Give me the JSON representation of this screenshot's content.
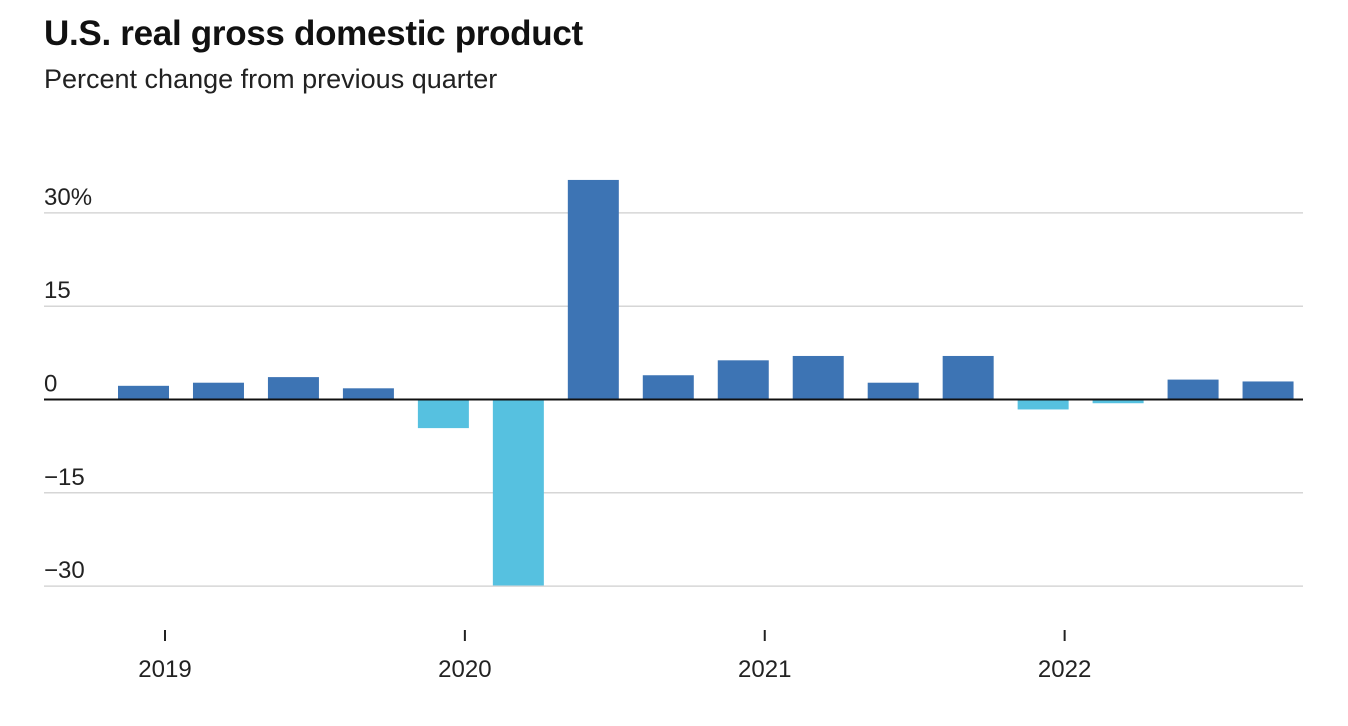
{
  "chart_data": {
    "type": "bar",
    "title": "U.S. real gross domestic product",
    "subtitle": "Percent change from previous quarter",
    "xlabel": "",
    "ylabel": "",
    "categories": [
      "2019 Q1",
      "2019 Q2",
      "2019 Q3",
      "2019 Q4",
      "2020 Q1",
      "2020 Q2",
      "2020 Q3",
      "2020 Q4",
      "2021 Q1",
      "2021 Q2",
      "2021 Q3",
      "2021 Q4",
      "2022 Q1",
      "2022 Q2",
      "2022 Q3",
      "2022 Q4"
    ],
    "values": [
      2.2,
      2.7,
      3.6,
      1.8,
      -4.6,
      -29.9,
      35.3,
      3.9,
      6.3,
      7.0,
      2.7,
      7.0,
      -1.6,
      -0.6,
      3.2,
      2.9
    ],
    "ylim": [
      -30,
      35.3
    ],
    "y_ticks": [
      {
        "value": 30,
        "label": "30%"
      },
      {
        "value": 15,
        "label": "15"
      },
      {
        "value": 0,
        "label": "0"
      },
      {
        "value": -15,
        "label": "−15"
      },
      {
        "value": -30,
        "label": "−30"
      }
    ],
    "x_ticks": [
      {
        "label": "2019",
        "position": 0.3
      },
      {
        "label": "2020",
        "position": 4.3
      },
      {
        "label": "2021",
        "position": 8.3
      },
      {
        "label": "2022",
        "position": 12.3
      }
    ],
    "grid": true,
    "legend": "none",
    "colors": {
      "positive": "#3d74b4",
      "negative": "#56c1e0",
      "gridline": "#d6d6d6",
      "baseline": "#111111",
      "tick": "#222222"
    }
  }
}
